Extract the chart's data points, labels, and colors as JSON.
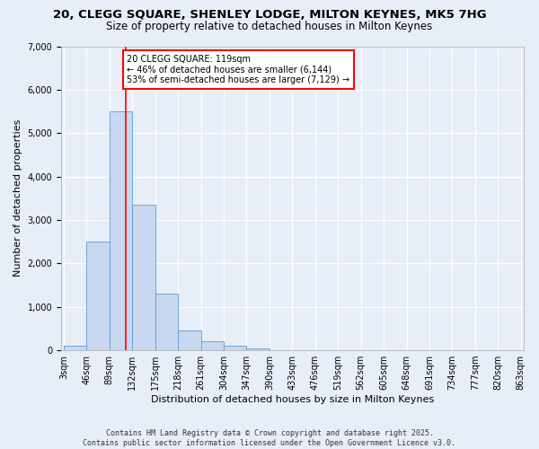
{
  "title1": "20, CLEGG SQUARE, SHENLEY LODGE, MILTON KEYNES, MK5 7HG",
  "title2": "Size of property relative to detached houses in Milton Keynes",
  "xlabel": "Distribution of detached houses by size in Milton Keynes",
  "ylabel": "Number of detached properties",
  "bar_color": "#c8d8f0",
  "bar_edge_color": "#5b9bd5",
  "bg_color": "#e8eef8",
  "fig_color": "#e8eef8",
  "grid_color": "#ffffff",
  "vline_color": "red",
  "vline_x": 119,
  "annotation_text": "20 CLEGG SQUARE: 119sqm\n← 46% of detached houses are smaller (6,144)\n53% of semi-detached houses are larger (7,129) →",
  "annotation_box_color": "#ffffff",
  "annotation_border_color": "red",
  "bin_edges": [
    3,
    46,
    89,
    132,
    175,
    218,
    261,
    304,
    347,
    390,
    433,
    476,
    519,
    562,
    605,
    648,
    691,
    734,
    777,
    820,
    863
  ],
  "bar_heights": [
    100,
    2500,
    5500,
    3350,
    1300,
    450,
    200,
    100,
    50,
    0,
    0,
    0,
    0,
    0,
    0,
    0,
    0,
    0,
    0,
    0
  ],
  "ylim": [
    0,
    7000
  ],
  "yticks": [
    0,
    1000,
    2000,
    3000,
    4000,
    5000,
    6000,
    7000
  ],
  "footer_text": "Contains HM Land Registry data © Crown copyright and database right 2025.\nContains public sector information licensed under the Open Government Licence v3.0.",
  "title_fontsize": 9.5,
  "subtitle_fontsize": 8.5,
  "label_fontsize": 8,
  "tick_fontsize": 7,
  "annot_fontsize": 7,
  "footer_fontsize": 6
}
